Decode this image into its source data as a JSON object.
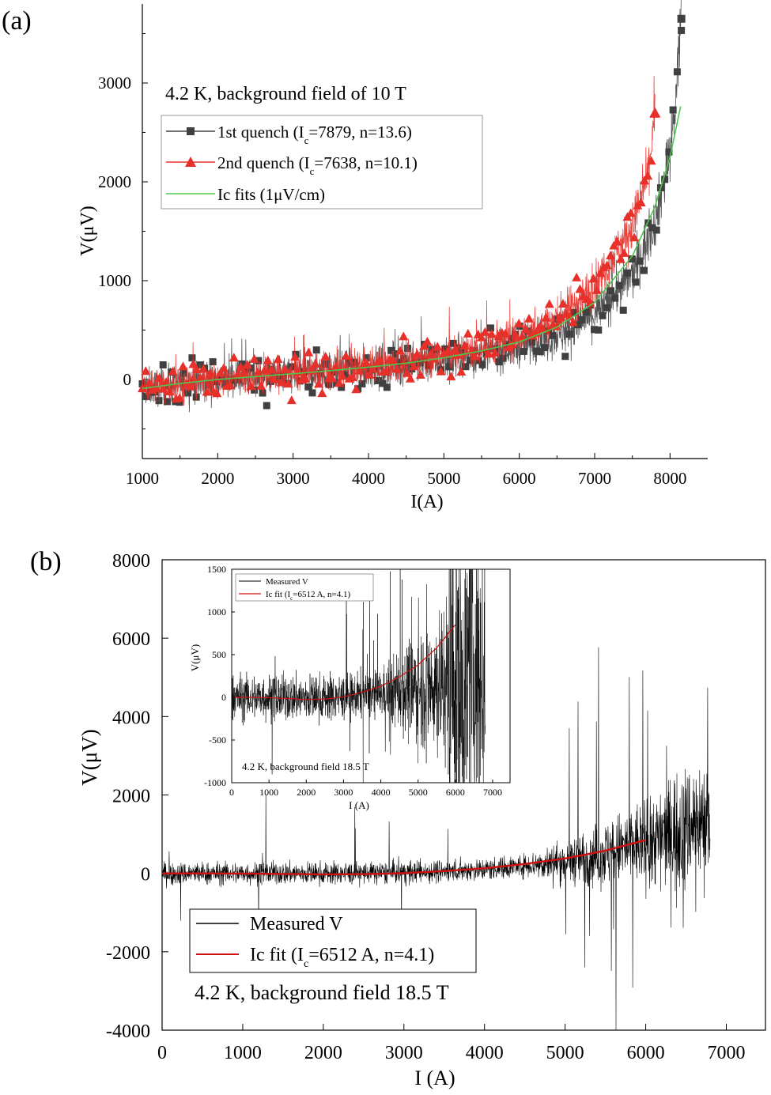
{
  "chart_data": [
    {
      "panel_label": "(a)",
      "type": "scatter",
      "title": "",
      "annotation": "4.2 K, background field of 10 T",
      "xlabel": "I(A)",
      "ylabel": "V(μV)",
      "xlim": [
        1000,
        8500
      ],
      "ylim": [
        -800,
        3800
      ],
      "xticks": [
        1000,
        2000,
        3000,
        4000,
        5000,
        6000,
        7000,
        8000
      ],
      "yticks": [
        0,
        1000,
        2000,
        3000
      ],
      "legend_position": "top-left",
      "series": [
        {
          "name": "1st quench",
          "legend_main": "1st quench (I",
          "legend_sub": "c",
          "legend_rest": "=7879, n=13.6)",
          "color": "#404040",
          "marker": "square",
          "noise": 190,
          "x": [
            1000,
            1500,
            2000,
            2500,
            3000,
            3500,
            4000,
            4500,
            5000,
            5500,
            6000,
            6500,
            7000,
            7500,
            7800,
            8000,
            8100,
            8150
          ],
          "y": [
            -90,
            -40,
            0,
            30,
            55,
            85,
            115,
            150,
            200,
            260,
            340,
            450,
            650,
            1050,
            1600,
            2300,
            3000,
            3650
          ]
        },
        {
          "name": "2nd quench",
          "legend_main": "2nd quench (I",
          "legend_sub": "c",
          "legend_rest": "=7638, n=10.1)",
          "color": "#e8302a",
          "marker": "triangle",
          "noise": 170,
          "x": [
            1000,
            1500,
            2000,
            2500,
            3000,
            3500,
            4000,
            4500,
            5000,
            5500,
            6000,
            6500,
            7000,
            7500,
            7700,
            7800
          ],
          "y": [
            -90,
            -40,
            0,
            30,
            60,
            95,
            135,
            180,
            240,
            320,
            430,
            620,
            950,
            1550,
            2050,
            2700
          ]
        },
        {
          "name": "Ic fits",
          "legend_main": "Ic fits (1μV/cm)",
          "color": "#4cc84c",
          "marker": "none",
          "x": [
            1000,
            1500,
            2000,
            2500,
            3000,
            3500,
            4000,
            4500,
            5000,
            5500,
            6000,
            6500,
            7000,
            7500,
            7800,
            8000,
            8150
          ],
          "y": [
            -90,
            -40,
            0,
            30,
            58,
            90,
            125,
            165,
            220,
            290,
            380,
            530,
            780,
            1250,
            1750,
            2250,
            2800
          ]
        }
      ]
    },
    {
      "panel_label": "(b)",
      "type": "line",
      "title": "",
      "annotation": "4.2 K, background field 18.5 T",
      "xlabel": "I (A)",
      "ylabel": "V(μV)",
      "xlim": [
        0,
        7500
      ],
      "ylim": [
        -4000,
        8000
      ],
      "xticks": [
        0,
        1000,
        2000,
        3000,
        4000,
        5000,
        6000,
        7000
      ],
      "yticks": [
        -4000,
        -2000,
        0,
        2000,
        4000,
        6000,
        8000
      ],
      "legend_position": "bottom-left",
      "series": [
        {
          "name": "Measured V",
          "legend_main": "Measured V",
          "color": "#000000",
          "x": [
            0,
            1000,
            2000,
            3000,
            4000,
            5000,
            5500,
            6000,
            6300,
            6500,
            6800
          ],
          "y": [
            0,
            0,
            0,
            20,
            100,
            300,
            500,
            800,
            1000,
            1200,
            1500
          ]
        },
        {
          "name": "Ic fit",
          "legend_main": "Ic fit (I",
          "legend_sub": "c",
          "legend_rest": "=6512 A, n=4.1)",
          "color": "#d01010",
          "x": [
            0,
            500,
            1000,
            1500,
            2000,
            2500,
            3000,
            3500,
            4000,
            4500,
            5000,
            5500,
            6000
          ],
          "y": [
            0,
            0,
            -5,
            -15,
            -25,
            -20,
            5,
            60,
            130,
            240,
            380,
            580,
            850
          ]
        }
      ],
      "inset": {
        "annotation": "4.2 K, background field 18.5 T",
        "xlabel": "I (A)",
        "ylabel": "V(μV)",
        "xlim": [
          0,
          7500
        ],
        "ylim": [
          -1000,
          1500
        ],
        "xticks": [
          0,
          1000,
          2000,
          3000,
          4000,
          5000,
          6000,
          7000
        ],
        "yticks": [
          -1000,
          -500,
          0,
          500,
          1000,
          1500
        ],
        "legend_position": "top-left",
        "legend": [
          {
            "legend_main": "Measured V",
            "color": "#000000"
          },
          {
            "legend_main": "Ic fit (I",
            "legend_sub": "c",
            "legend_rest": "=6512 A, n=4.1)",
            "color": "#d01010"
          }
        ],
        "fit_x": [
          0,
          500,
          1000,
          1500,
          2000,
          2500,
          3000,
          3500,
          4000,
          4500,
          5000,
          5500,
          6000
        ],
        "fit_y": [
          0,
          0,
          -5,
          -15,
          -25,
          -20,
          5,
          60,
          130,
          240,
          380,
          580,
          850
        ]
      }
    }
  ]
}
